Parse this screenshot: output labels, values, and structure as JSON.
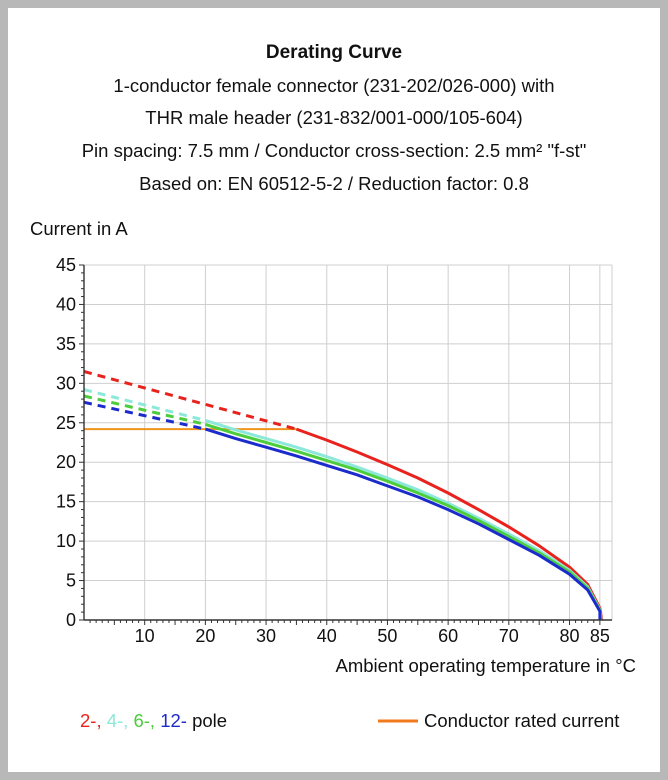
{
  "chart_data": {
    "type": "line",
    "title": "Derating Curve",
    "subtitle_lines": [
      "1-conductor female connector (231-202/026-000) with",
      "THR male header (231-832/001-000/105-604)",
      "Pin spacing: 7.5 mm / Conductor cross-section: 2.5 mm² \"f-st\"",
      "Based on: EN 60512-5-2 / Reduction factor: 0.8"
    ],
    "ylabel": "Current in A",
    "xlabel": "Ambient operating temperature in °C",
    "xlim": [
      0,
      87
    ],
    "ylim": [
      0,
      45
    ],
    "x_ticks": [
      10,
      20,
      30,
      40,
      50,
      60,
      70,
      80,
      85
    ],
    "y_ticks": [
      0,
      5,
      10,
      15,
      20,
      25,
      30,
      35,
      40,
      45
    ],
    "grid": true,
    "series": [
      {
        "color": "#e8231e",
        "dashed": [
          [
            0,
            31.5
          ],
          [
            35,
            24.2
          ]
        ],
        "solid": [
          [
            35,
            24.2
          ],
          [
            40,
            22.8
          ],
          [
            45,
            21.3
          ],
          [
            50,
            19.7
          ],
          [
            55,
            18.0
          ],
          [
            60,
            16.1
          ],
          [
            65,
            14.0
          ],
          [
            70,
            11.8
          ],
          [
            75,
            9.4
          ],
          [
            80,
            6.7
          ],
          [
            83,
            4.5
          ],
          [
            85,
            1.5
          ],
          [
            85.3,
            0
          ]
        ]
      },
      {
        "color": "#8ce8d8",
        "dashed": [
          [
            0,
            29.2
          ],
          [
            20,
            25.3
          ]
        ],
        "solid": [
          [
            20,
            25.3
          ],
          [
            25,
            24.1
          ],
          [
            30,
            23.0
          ],
          [
            35,
            21.9
          ],
          [
            40,
            20.7
          ],
          [
            45,
            19.4
          ],
          [
            50,
            18.0
          ],
          [
            55,
            16.5
          ],
          [
            60,
            14.8
          ],
          [
            65,
            12.9
          ],
          [
            70,
            10.9
          ],
          [
            75,
            8.8
          ],
          [
            80,
            6.3
          ],
          [
            83,
            4.2
          ],
          [
            85,
            1.3
          ],
          [
            85.2,
            0
          ]
        ]
      },
      {
        "color": "#4ccd3c",
        "dashed": [
          [
            0,
            28.4
          ],
          [
            20,
            24.8
          ]
        ],
        "solid": [
          [
            20,
            24.8
          ],
          [
            25,
            23.6
          ],
          [
            30,
            22.5
          ],
          [
            35,
            21.4
          ],
          [
            40,
            20.2
          ],
          [
            45,
            19.0
          ],
          [
            50,
            17.6
          ],
          [
            55,
            16.1
          ],
          [
            60,
            14.5
          ],
          [
            65,
            12.6
          ],
          [
            70,
            10.6
          ],
          [
            75,
            8.5
          ],
          [
            80,
            6.1
          ],
          [
            83,
            4.0
          ],
          [
            85,
            1.2
          ],
          [
            85.1,
            0
          ]
        ]
      },
      {
        "color": "#1c2ccc",
        "dashed": [
          [
            0,
            27.6
          ],
          [
            20,
            24.2
          ]
        ],
        "solid": [
          [
            20,
            24.2
          ],
          [
            25,
            23.0
          ],
          [
            30,
            21.9
          ],
          [
            35,
            20.8
          ],
          [
            40,
            19.6
          ],
          [
            45,
            18.4
          ],
          [
            50,
            17.0
          ],
          [
            55,
            15.6
          ],
          [
            60,
            14.0
          ],
          [
            65,
            12.2
          ],
          [
            70,
            10.2
          ],
          [
            75,
            8.2
          ],
          [
            80,
            5.8
          ],
          [
            83,
            3.8
          ],
          [
            85,
            1.1
          ],
          [
            85,
            0
          ]
        ]
      }
    ],
    "rated_current": {
      "color": "#f0931c",
      "value": 24.2,
      "x_start": 0,
      "x_end": 35
    },
    "legend": {
      "pole_parts": [
        {
          "text": "2-, ",
          "color": "#e8231e"
        },
        {
          "text": "4-, ",
          "color": "#8ce8d8"
        },
        {
          "text": "6-, ",
          "color": "#4ccd3c"
        },
        {
          "text": "12-",
          "color": "#1c2ccc"
        },
        {
          "text": " pole",
          "color": "#111111"
        }
      ],
      "rated_label": "Conductor rated current",
      "rated_color": "#f07a1c"
    }
  }
}
